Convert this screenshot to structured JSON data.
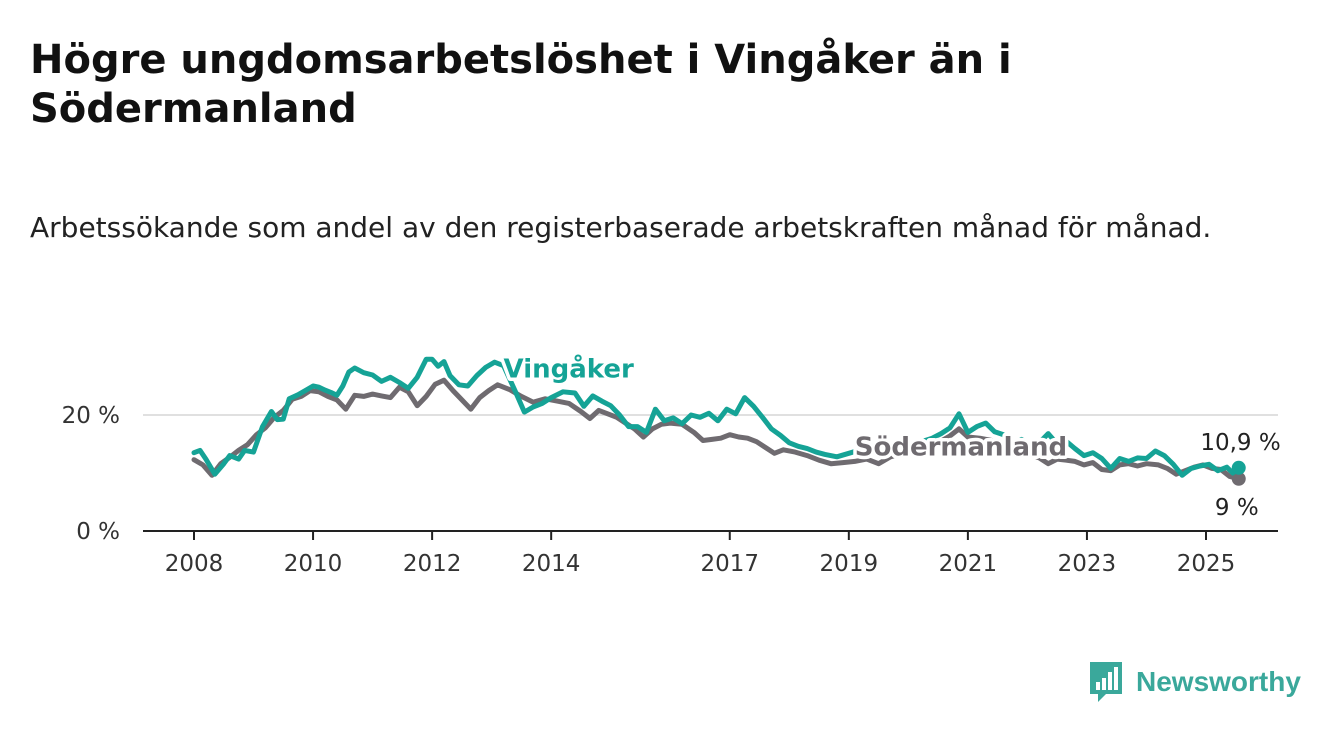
{
  "title": "Högre ungdomsarbetslöshet i Vingåker än i Södermanland",
  "subtitle": "Arbetssökande som andel av den registerbaserade arbetskraften månad för månad.",
  "logo": {
    "text": "Newsworthy",
    "icon": "newsworthy-logo-icon",
    "color": "#3aa89b"
  },
  "chart_data": {
    "type": "line",
    "title": "Högre ungdomsarbetslöshet i Vingåker än i Södermanland",
    "subtitle": "Arbetssökande som andel av den registerbaserade arbetskraften månad för månad.",
    "xlabel": "",
    "ylabel": "",
    "xlim": [
      2007.5,
      2026.2
    ],
    "ylim": [
      0,
      30
    ],
    "x_ticks": [
      {
        "value": 2008,
        "label": "2008"
      },
      {
        "value": 2010,
        "label": "2010"
      },
      {
        "value": 2012,
        "label": "2012"
      },
      {
        "value": 2014,
        "label": "2014"
      },
      {
        "value": 2017,
        "label": "2017"
      },
      {
        "value": 2019,
        "label": "2019"
      },
      {
        "value": 2021,
        "label": "2021"
      },
      {
        "value": 2023,
        "label": "2023"
      },
      {
        "value": 2025,
        "label": "2025"
      }
    ],
    "y_ticks": [
      {
        "value": 0,
        "label": "0 %"
      },
      {
        "value": 20,
        "label": "20 %"
      }
    ],
    "grid": "horizontal",
    "series": [
      {
        "name": "Vingåker",
        "color": "#15a396",
        "end_label": "10,9 %",
        "label_position": [
          2013.2,
          26.5
        ],
        "points": [
          [
            2008.0,
            13.5
          ],
          [
            2008.1,
            13.9
          ],
          [
            2008.2,
            12.4
          ],
          [
            2008.35,
            9.8
          ],
          [
            2008.5,
            11.6
          ],
          [
            2008.6,
            13.0
          ],
          [
            2008.75,
            12.4
          ],
          [
            2008.85,
            13.9
          ],
          [
            2009.0,
            13.6
          ],
          [
            2009.15,
            18.0
          ],
          [
            2009.3,
            20.6
          ],
          [
            2009.4,
            19.2
          ],
          [
            2009.5,
            19.3
          ],
          [
            2009.6,
            22.8
          ],
          [
            2009.75,
            23.5
          ],
          [
            2009.9,
            24.4
          ],
          [
            2010.0,
            25.0
          ],
          [
            2010.1,
            24.8
          ],
          [
            2010.2,
            24.3
          ],
          [
            2010.3,
            23.9
          ],
          [
            2010.4,
            23.4
          ],
          [
            2010.5,
            25.0
          ],
          [
            2010.6,
            27.4
          ],
          [
            2010.7,
            28.1
          ],
          [
            2010.85,
            27.3
          ],
          [
            2011.0,
            26.9
          ],
          [
            2011.15,
            25.8
          ],
          [
            2011.3,
            26.5
          ],
          [
            2011.45,
            25.6
          ],
          [
            2011.6,
            24.6
          ],
          [
            2011.75,
            26.5
          ],
          [
            2011.9,
            29.6
          ],
          [
            2012.0,
            29.6
          ],
          [
            2012.1,
            28.4
          ],
          [
            2012.2,
            29.2
          ],
          [
            2012.3,
            26.8
          ],
          [
            2012.45,
            25.2
          ],
          [
            2012.6,
            25.0
          ],
          [
            2012.75,
            26.8
          ],
          [
            2012.9,
            28.2
          ],
          [
            2013.05,
            29.1
          ],
          [
            2013.2,
            28.5
          ],
          [
            2013.4,
            24.0
          ],
          [
            2013.55,
            20.5
          ],
          [
            2013.7,
            21.4
          ],
          [
            2013.85,
            22.0
          ],
          [
            2014.0,
            23.0
          ],
          [
            2014.2,
            24.0
          ],
          [
            2014.4,
            23.8
          ],
          [
            2014.55,
            21.5
          ],
          [
            2014.7,
            23.3
          ],
          [
            2014.85,
            22.4
          ],
          [
            2015.0,
            21.6
          ],
          [
            2015.15,
            20.0
          ],
          [
            2015.3,
            18.0
          ],
          [
            2015.45,
            18.0
          ],
          [
            2015.6,
            17.0
          ],
          [
            2015.75,
            21.0
          ],
          [
            2015.9,
            19.0
          ],
          [
            2016.05,
            19.5
          ],
          [
            2016.2,
            18.5
          ],
          [
            2016.35,
            20.0
          ],
          [
            2016.5,
            19.6
          ],
          [
            2016.65,
            20.3
          ],
          [
            2016.8,
            19.0
          ],
          [
            2016.95,
            21.0
          ],
          [
            2017.1,
            20.2
          ],
          [
            2017.25,
            23.0
          ],
          [
            2017.4,
            21.5
          ],
          [
            2017.55,
            19.6
          ],
          [
            2017.7,
            17.6
          ],
          [
            2017.85,
            16.5
          ],
          [
            2018.0,
            15.2
          ],
          [
            2018.15,
            14.6
          ],
          [
            2018.3,
            14.2
          ],
          [
            2018.45,
            13.6
          ],
          [
            2018.6,
            13.2
          ],
          [
            2018.8,
            12.8
          ],
          [
            2019.0,
            13.4
          ],
          [
            2019.2,
            14.0
          ],
          [
            2019.4,
            13.8
          ],
          [
            2019.6,
            14.7
          ],
          [
            2019.8,
            14.2
          ],
          [
            2019.95,
            15.3
          ],
          [
            2020.1,
            15.0
          ],
          [
            2020.25,
            15.5
          ],
          [
            2020.4,
            16.0
          ],
          [
            2020.55,
            16.8
          ],
          [
            2020.7,
            17.8
          ],
          [
            2020.85,
            20.2
          ],
          [
            2021.0,
            17.0
          ],
          [
            2021.15,
            18.0
          ],
          [
            2021.3,
            18.6
          ],
          [
            2021.45,
            17.1
          ],
          [
            2021.6,
            16.6
          ],
          [
            2021.75,
            14.6
          ],
          [
            2021.9,
            15.8
          ],
          [
            2022.05,
            14.6
          ],
          [
            2022.2,
            15.2
          ],
          [
            2022.35,
            16.8
          ],
          [
            2022.5,
            15.0
          ],
          [
            2022.65,
            15.5
          ],
          [
            2022.8,
            14.2
          ],
          [
            2022.95,
            13.0
          ],
          [
            2023.1,
            13.5
          ],
          [
            2023.25,
            12.5
          ],
          [
            2023.4,
            10.8
          ],
          [
            2023.55,
            12.5
          ],
          [
            2023.7,
            12.0
          ],
          [
            2023.85,
            12.6
          ],
          [
            2024.0,
            12.5
          ],
          [
            2024.15,
            13.8
          ],
          [
            2024.3,
            13.0
          ],
          [
            2024.45,
            11.5
          ],
          [
            2024.6,
            9.6
          ],
          [
            2024.75,
            10.8
          ],
          [
            2024.9,
            11.2
          ],
          [
            2025.05,
            11.5
          ],
          [
            2025.2,
            10.4
          ],
          [
            2025.35,
            11.0
          ],
          [
            2025.45,
            10.0
          ],
          [
            2025.55,
            10.9
          ]
        ]
      },
      {
        "name": "Södermanland",
        "color": "#6f6b70",
        "end_label": "9 %",
        "label_position": [
          2019.1,
          13.0
        ],
        "points": [
          [
            2008.0,
            12.3
          ],
          [
            2008.15,
            11.4
          ],
          [
            2008.3,
            9.6
          ],
          [
            2008.45,
            11.6
          ],
          [
            2008.6,
            12.7
          ],
          [
            2008.75,
            13.9
          ],
          [
            2008.9,
            14.9
          ],
          [
            2009.05,
            16.6
          ],
          [
            2009.2,
            17.8
          ],
          [
            2009.35,
            19.6
          ],
          [
            2009.5,
            20.8
          ],
          [
            2009.65,
            22.7
          ],
          [
            2009.8,
            23.2
          ],
          [
            2009.95,
            24.2
          ],
          [
            2010.1,
            24.0
          ],
          [
            2010.25,
            23.2
          ],
          [
            2010.4,
            22.6
          ],
          [
            2010.55,
            21.0
          ],
          [
            2010.7,
            23.4
          ],
          [
            2010.85,
            23.2
          ],
          [
            2011.0,
            23.6
          ],
          [
            2011.15,
            23.3
          ],
          [
            2011.3,
            23.0
          ],
          [
            2011.45,
            24.8
          ],
          [
            2011.6,
            24.0
          ],
          [
            2011.75,
            21.6
          ],
          [
            2011.9,
            23.2
          ],
          [
            2012.05,
            25.3
          ],
          [
            2012.2,
            26.0
          ],
          [
            2012.35,
            24.2
          ],
          [
            2012.5,
            22.6
          ],
          [
            2012.65,
            21.0
          ],
          [
            2012.8,
            23.0
          ],
          [
            2012.95,
            24.2
          ],
          [
            2013.1,
            25.2
          ],
          [
            2013.3,
            24.4
          ],
          [
            2013.5,
            23.2
          ],
          [
            2013.7,
            22.2
          ],
          [
            2013.9,
            22.8
          ],
          [
            2014.1,
            22.4
          ],
          [
            2014.3,
            22.0
          ],
          [
            2014.5,
            20.6
          ],
          [
            2014.65,
            19.4
          ],
          [
            2014.8,
            20.8
          ],
          [
            2014.95,
            20.2
          ],
          [
            2015.1,
            19.6
          ],
          [
            2015.25,
            18.6
          ],
          [
            2015.4,
            17.6
          ],
          [
            2015.55,
            16.2
          ],
          [
            2015.7,
            17.6
          ],
          [
            2015.85,
            18.4
          ],
          [
            2016.0,
            18.6
          ],
          [
            2016.2,
            18.4
          ],
          [
            2016.4,
            17.0
          ],
          [
            2016.55,
            15.6
          ],
          [
            2016.7,
            15.8
          ],
          [
            2016.85,
            16.0
          ],
          [
            2017.0,
            16.6
          ],
          [
            2017.15,
            16.2
          ],
          [
            2017.3,
            16.0
          ],
          [
            2017.45,
            15.4
          ],
          [
            2017.6,
            14.4
          ],
          [
            2017.75,
            13.4
          ],
          [
            2017.9,
            14.0
          ],
          [
            2018.1,
            13.6
          ],
          [
            2018.3,
            13.0
          ],
          [
            2018.5,
            12.2
          ],
          [
            2018.7,
            11.6
          ],
          [
            2018.9,
            11.8
          ],
          [
            2019.1,
            12.0
          ],
          [
            2019.3,
            12.4
          ],
          [
            2019.5,
            11.6
          ],
          [
            2019.7,
            12.8
          ],
          [
            2019.9,
            13.4
          ],
          [
            2020.1,
            14.0
          ],
          [
            2020.3,
            14.6
          ],
          [
            2020.5,
            15.2
          ],
          [
            2020.7,
            16.4
          ],
          [
            2020.85,
            17.6
          ],
          [
            2021.0,
            16.2
          ],
          [
            2021.2,
            16.0
          ],
          [
            2021.4,
            15.6
          ],
          [
            2021.6,
            14.6
          ],
          [
            2021.8,
            13.8
          ],
          [
            2022.0,
            13.4
          ],
          [
            2022.2,
            12.6
          ],
          [
            2022.35,
            11.6
          ],
          [
            2022.5,
            12.4
          ],
          [
            2022.65,
            12.2
          ],
          [
            2022.8,
            12.0
          ],
          [
            2022.95,
            11.4
          ],
          [
            2023.1,
            11.8
          ],
          [
            2023.25,
            10.6
          ],
          [
            2023.4,
            10.4
          ],
          [
            2023.55,
            11.4
          ],
          [
            2023.7,
            11.6
          ],
          [
            2023.85,
            11.2
          ],
          [
            2024.0,
            11.6
          ],
          [
            2024.2,
            11.4
          ],
          [
            2024.35,
            10.8
          ],
          [
            2024.5,
            9.8
          ],
          [
            2024.65,
            10.4
          ],
          [
            2024.8,
            11.0
          ],
          [
            2024.95,
            11.4
          ],
          [
            2025.1,
            10.8
          ],
          [
            2025.25,
            10.6
          ],
          [
            2025.4,
            9.4
          ],
          [
            2025.55,
            9.0
          ]
        ]
      }
    ]
  }
}
